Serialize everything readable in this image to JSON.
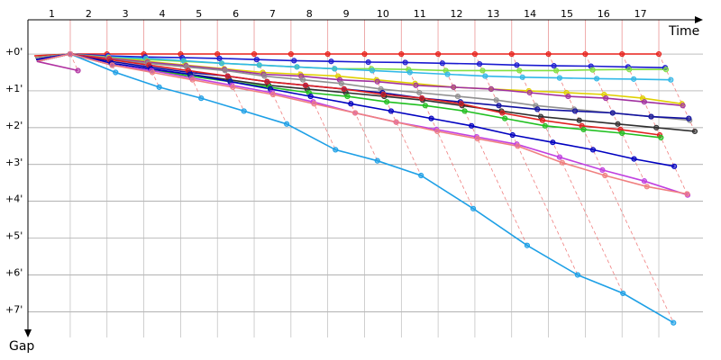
{
  "chart_data": {
    "type": "line",
    "x_label": "Time",
    "y_label": "Gap",
    "x": [
      0,
      1,
      2,
      3,
      4,
      5,
      6,
      7,
      8,
      9,
      10,
      11,
      12,
      13,
      14,
      15,
      16,
      17
    ],
    "xlim": [
      -0.15,
      18.2
    ],
    "xticks": [
      1,
      2,
      3,
      4,
      5,
      6,
      7,
      8,
      9,
      10,
      11,
      12,
      13,
      14,
      15,
      16,
      17
    ],
    "ylim": [
      -0.93,
      7.7
    ],
    "yticks": [
      {
        "value": 0,
        "label": "+0'"
      },
      {
        "value": 1,
        "label": "+1'"
      },
      {
        "value": 2,
        "label": "+2'"
      },
      {
        "value": 3,
        "label": "+3'"
      },
      {
        "value": 4,
        "label": "+4'"
      },
      {
        "value": 5,
        "label": "+5'"
      },
      {
        "value": 6,
        "label": "+6'"
      },
      {
        "value": 7,
        "label": "+7'"
      }
    ],
    "y_reversed": true,
    "grid": true,
    "series": [
      {
        "color": "#e8201a",
        "values": [
          0.05,
          0,
          0,
          0,
          0,
          0,
          0,
          0,
          0,
          0,
          0,
          0,
          0,
          0,
          0,
          0,
          0,
          0
        ]
      },
      {
        "color": "#1ea0e6",
        "values": [
          0.2,
          0,
          0.5,
          0.9,
          1.2,
          1.55,
          1.9,
          2.6,
          2.9,
          3.3,
          4.2,
          5.2,
          6.0,
          6.5,
          7.3,
          null,
          null,
          null
        ]
      },
      {
        "color": "#1a1ad0",
        "values": [
          0.1,
          0,
          0.05,
          0.08,
          0.1,
          0.12,
          0.15,
          0.18,
          0.2,
          0.22,
          0.23,
          0.25,
          0.27,
          0.3,
          0.32,
          0.33,
          0.35,
          0.37
        ]
      },
      {
        "color": "#80e040",
        "values": [
          0.1,
          0,
          0.1,
          0.15,
          0.2,
          0.25,
          0.3,
          0.35,
          0.4,
          0.4,
          0.42,
          0.45,
          0.45,
          0.45,
          0.45,
          0.43,
          0.42,
          0.42
        ]
      },
      {
        "color": "#30b8e8",
        "values": [
          0.1,
          0,
          0.08,
          0.12,
          0.18,
          0.25,
          0.3,
          0.35,
          0.4,
          0.45,
          0.5,
          0.55,
          0.6,
          0.63,
          0.65,
          0.67,
          0.68,
          0.7
        ]
      },
      {
        "color": "#e0d000",
        "values": [
          0.1,
          0,
          0.1,
          0.2,
          0.3,
          0.4,
          0.5,
          0.55,
          0.6,
          0.7,
          0.8,
          0.9,
          0.95,
          1.0,
          1.05,
          1.1,
          1.2,
          1.35
        ]
      },
      {
        "color": "#a030a0",
        "values": [
          0.15,
          0,
          0.12,
          0.22,
          0.32,
          0.42,
          0.55,
          0.6,
          0.7,
          0.75,
          0.85,
          0.9,
          0.95,
          1.05,
          1.15,
          1.2,
          1.3,
          1.4
        ]
      },
      {
        "color": "#909090",
        "values": [
          0.1,
          0,
          0.15,
          0.25,
          0.35,
          0.45,
          0.6,
          0.7,
          0.8,
          0.95,
          1.05,
          1.15,
          1.25,
          1.4,
          1.5,
          1.6,
          1.7,
          1.8
        ]
      },
      {
        "color": "#1010a0",
        "values": [
          0.15,
          0,
          0.2,
          0.35,
          0.5,
          0.6,
          0.75,
          0.85,
          0.95,
          1.05,
          1.2,
          1.3,
          1.4,
          1.5,
          1.55,
          1.6,
          1.7,
          1.75
        ]
      },
      {
        "color": "#303030",
        "values": [
          0.2,
          0,
          0.3,
          0.45,
          0.55,
          0.7,
          0.85,
          0.95,
          1.05,
          1.15,
          1.25,
          1.4,
          1.55,
          1.7,
          1.8,
          1.9,
          2.0,
          2.1
        ]
      },
      {
        "color": "#e02020",
        "values": [
          0.15,
          0,
          0.15,
          0.3,
          0.45,
          0.6,
          0.75,
          0.85,
          0.95,
          1.1,
          1.2,
          1.35,
          1.6,
          1.8,
          1.95,
          2.05,
          2.2,
          null
        ]
      },
      {
        "color": "#20c020",
        "values": [
          0.2,
          0,
          0.3,
          0.45,
          0.6,
          0.75,
          0.9,
          1.05,
          1.15,
          1.3,
          1.4,
          1.55,
          1.75,
          1.95,
          2.05,
          2.15,
          2.27,
          null
        ]
      },
      {
        "color": "#0000c0",
        "values": [
          0.15,
          0,
          0.25,
          0.4,
          0.55,
          0.75,
          0.95,
          1.15,
          1.35,
          1.55,
          1.75,
          1.95,
          2.2,
          2.4,
          2.6,
          2.85,
          3.05,
          null
        ]
      },
      {
        "color": "#c040e0",
        "values": [
          0.2,
          0,
          0.3,
          0.45,
          0.65,
          0.85,
          1.05,
          1.3,
          1.6,
          1.85,
          2.05,
          2.25,
          2.45,
          2.8,
          3.15,
          3.45,
          3.83,
          null
        ]
      },
      {
        "color": "#f08080",
        "values": [
          0.2,
          0,
          0.3,
          0.5,
          0.7,
          0.9,
          1.1,
          1.35,
          1.6,
          1.85,
          2.1,
          2.3,
          2.5,
          2.95,
          3.3,
          3.6,
          3.8,
          null
        ]
      },
      {
        "color": "#b030a0",
        "values": [
          0.2,
          0.45,
          null,
          null,
          null,
          null,
          null,
          null,
          null,
          null,
          null,
          null,
          null,
          null,
          null,
          null,
          null,
          null
        ]
      }
    ]
  }
}
